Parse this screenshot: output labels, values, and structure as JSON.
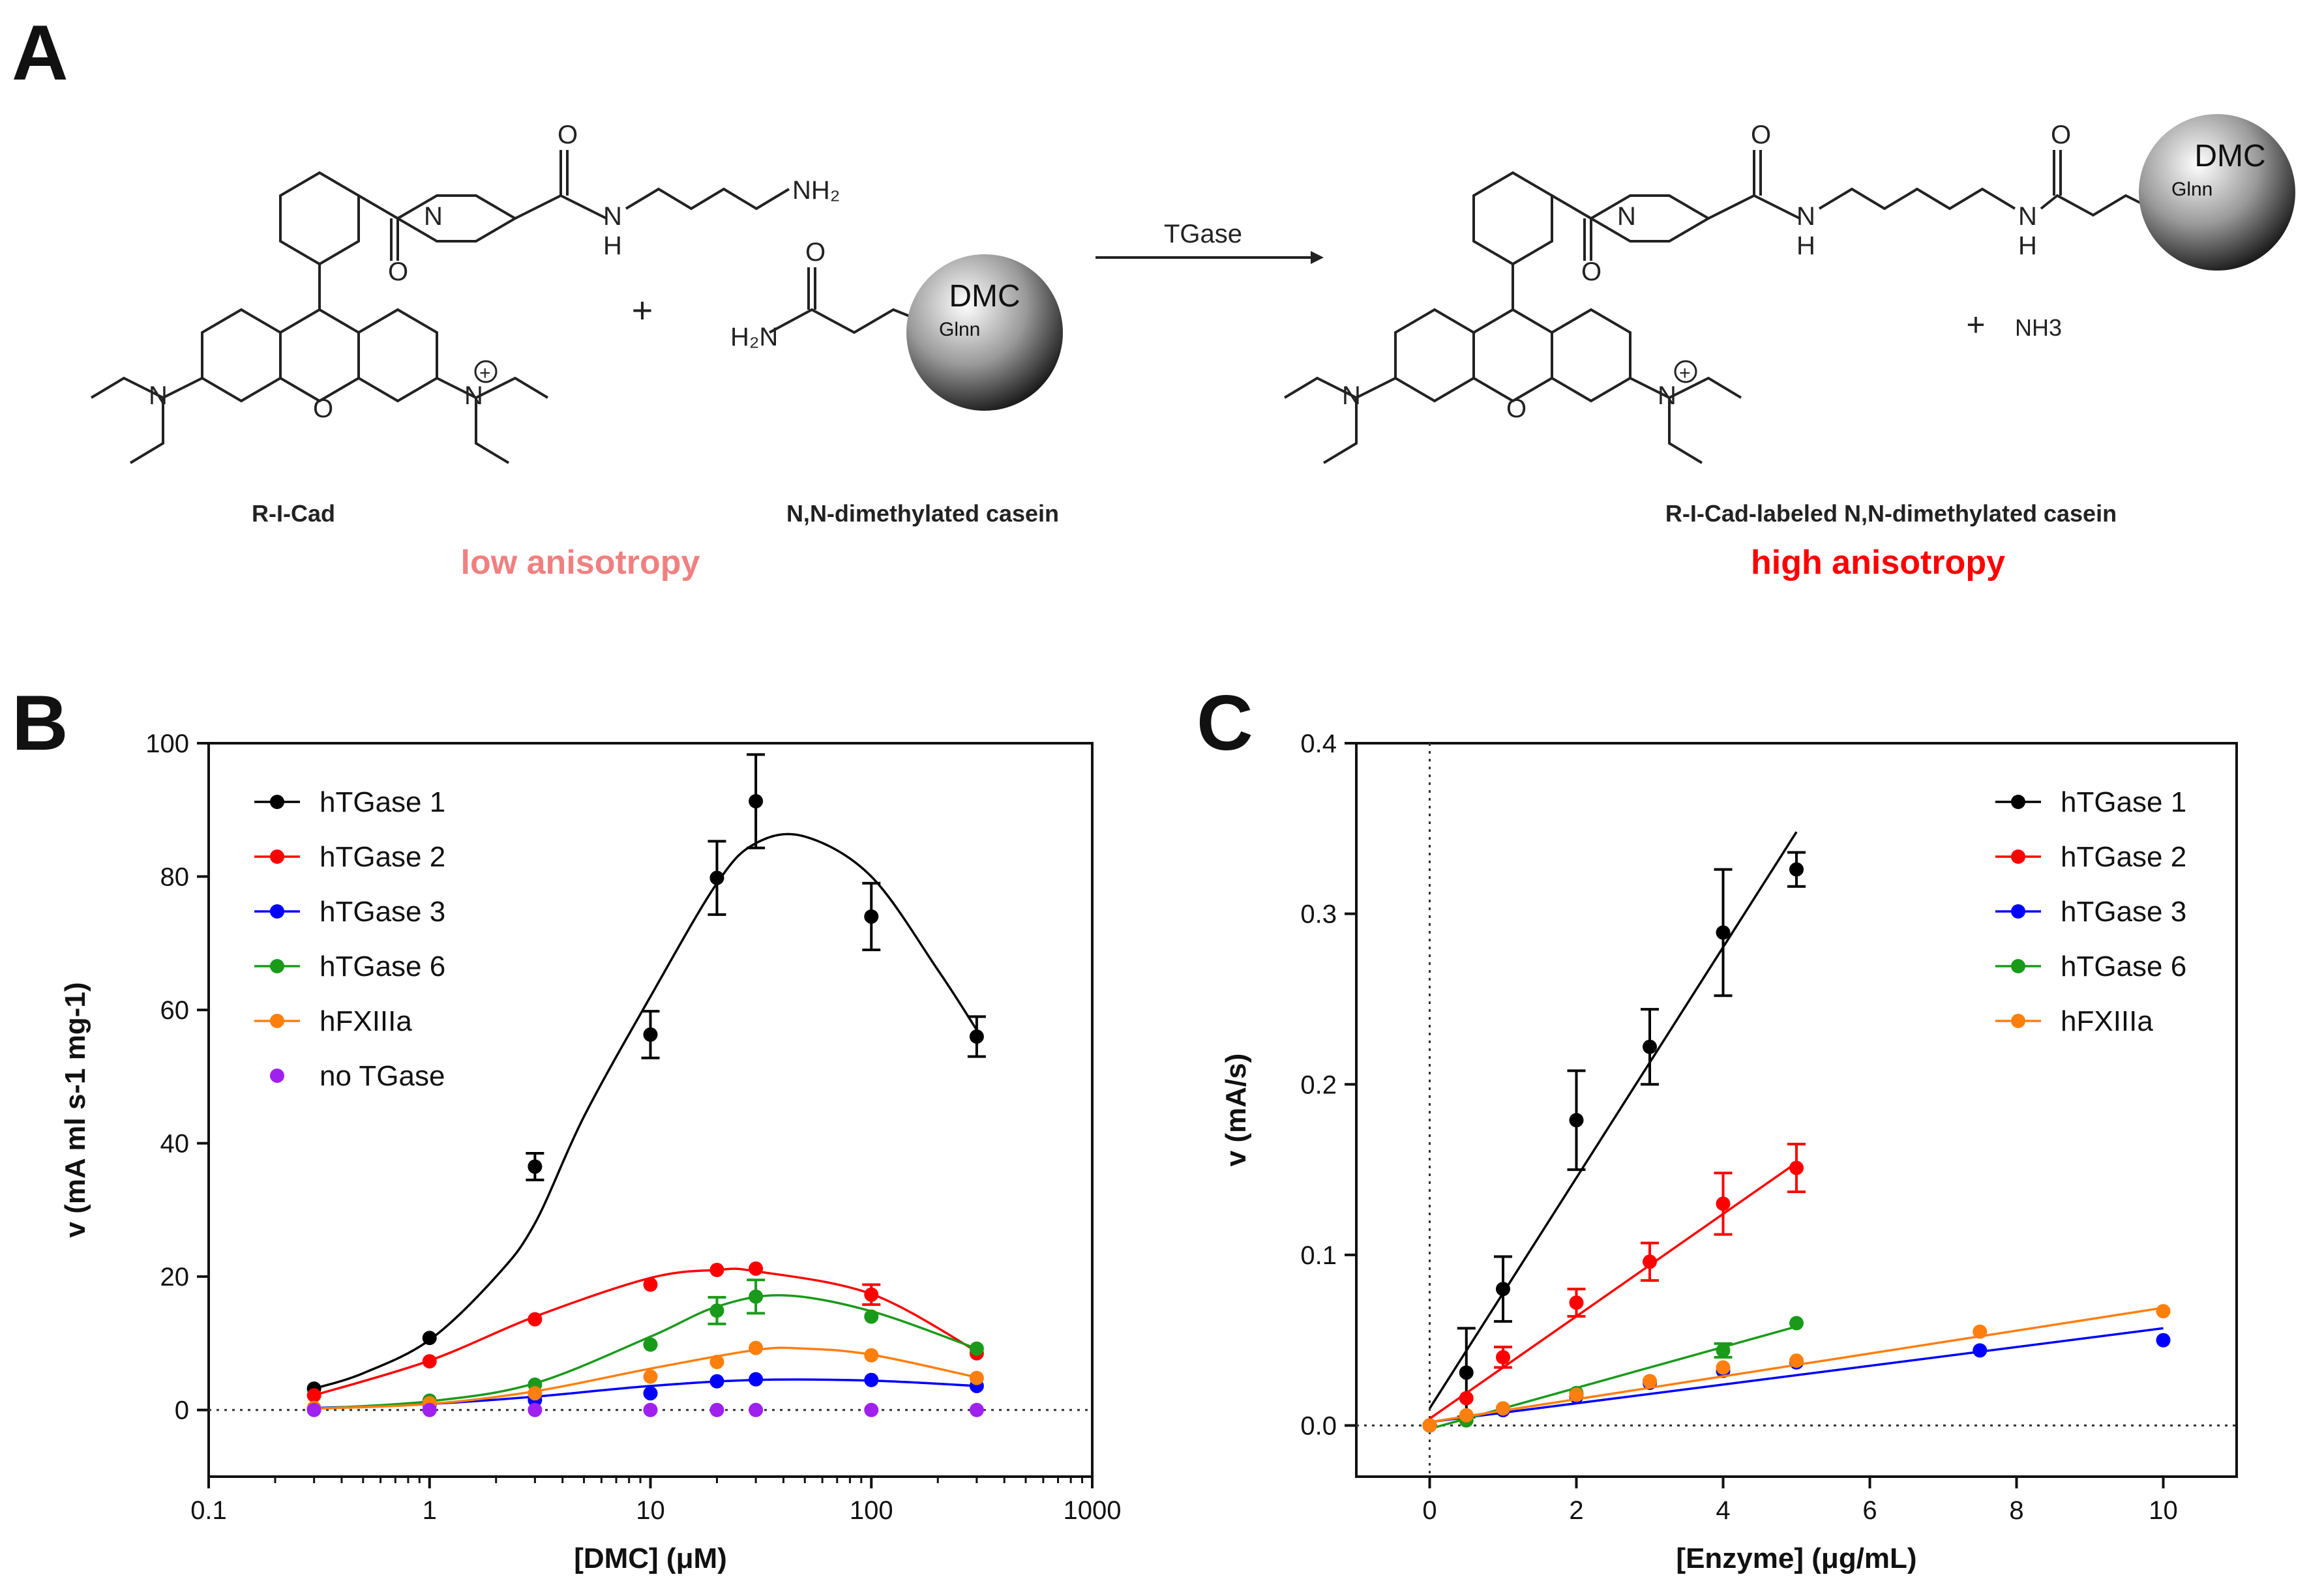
{
  "panels": {
    "a": "A",
    "b": "B",
    "c": "C"
  },
  "scheme": {
    "arrow_label": "TGase",
    "plus1": "+",
    "plus2": "+",
    "byproduct": "NH3",
    "reactant1_name": "R-I-Cad",
    "reactant2_name": "N,N-dimethylated casein",
    "product_name": "R-I-Cad-labeled N,N-dimethylated casein",
    "low_label": "low anisotropy",
    "high_label": "high anisotropy",
    "sphere_label": "DMC",
    "sphere_sub": "Glnn",
    "colors": {
      "low": "#f08080",
      "high": "#ff0000"
    }
  },
  "chart_data": [
    {
      "type": "scatter",
      "panel": "B",
      "xscale": "log",
      "xlabel": "[DMC] (μM)",
      "ylabel": "v (mA ml s-1 mg-1)",
      "xlim": [
        0.1,
        1000
      ],
      "ylim": [
        -10,
        100
      ],
      "xticks": [
        0.1,
        1,
        10,
        100,
        1000
      ],
      "xtick_labels": [
        "0.1",
        "1",
        "10",
        "100",
        "1000"
      ],
      "yticks": [
        0,
        20,
        40,
        60,
        80,
        100
      ],
      "ytick_labels": [
        "0",
        "20",
        "40",
        "60",
        "80",
        "100"
      ],
      "legend": "top-left",
      "x": [
        0.3,
        1,
        3,
        10,
        20,
        30,
        100,
        300
      ],
      "series": [
        {
          "name": "hTGase 1",
          "color": "#000000",
          "values": [
            3.2,
            10.8,
            36.5,
            56.3,
            79.8,
            91.3,
            74.0,
            56.0
          ],
          "err": [
            0,
            0,
            2,
            3.5,
            5.5,
            7,
            5,
            3
          ],
          "curve": [
            [
              0.3,
              3.2
            ],
            [
              0.5,
              5.5
            ],
            [
              1,
              10.5
            ],
            [
              2,
              20
            ],
            [
              3,
              28
            ],
            [
              5,
              44
            ],
            [
              10,
              62
            ],
            [
              20,
              79
            ],
            [
              30,
              85
            ],
            [
              50,
              86
            ],
            [
              100,
              80
            ],
            [
              200,
              66
            ],
            [
              300,
              57
            ]
          ]
        },
        {
          "name": "hTGase 2",
          "color": "#ff0000",
          "values": [
            2.2,
            7.3,
            13.6,
            18.8,
            21.0,
            21.2,
            17.3,
            8.5
          ],
          "err": [
            0,
            0,
            0,
            0,
            0,
            0,
            1.5,
            0
          ],
          "curve": [
            [
              0.3,
              2.2
            ],
            [
              1,
              7.4
            ],
            [
              3,
              14
            ],
            [
              10,
              19.8
            ],
            [
              20,
              21
            ],
            [
              30,
              20.8
            ],
            [
              100,
              17.4
            ],
            [
              300,
              8.8
            ]
          ]
        },
        {
          "name": "hTGase 3",
          "color": "#0000ff",
          "values": [
            0.2,
            0.8,
            1.5,
            2.5,
            4.3,
            4.6,
            4.5,
            3.6
          ],
          "err": [
            0,
            0,
            0,
            0,
            0,
            0,
            0,
            0
          ],
          "curve": [
            [
              0.3,
              0.3
            ],
            [
              1,
              0.9
            ],
            [
              3,
              2
            ],
            [
              10,
              3.6
            ],
            [
              30,
              4.5
            ],
            [
              100,
              4.4
            ],
            [
              300,
              3.6
            ]
          ]
        },
        {
          "name": "hTGase 6",
          "color": "#1a9a1a",
          "values": [
            0.3,
            1.4,
            3.8,
            9.8,
            14.9,
            17.0,
            14.0,
            9.2
          ],
          "err": [
            0,
            0,
            0,
            0,
            2,
            2.5,
            0,
            0
          ],
          "curve": [
            [
              0.3,
              0.2
            ],
            [
              1,
              1.3
            ],
            [
              3,
              4
            ],
            [
              10,
              11
            ],
            [
              20,
              15.5
            ],
            [
              40,
              17.2
            ],
            [
              100,
              14.8
            ],
            [
              300,
              9.2
            ]
          ]
        },
        {
          "name": "hFXIIIa",
          "color": "#ff7f0e",
          "values": [
            0.3,
            1.0,
            2.5,
            5.0,
            7.2,
            9.3,
            8.2,
            4.8
          ],
          "err": [
            0,
            0,
            0,
            0,
            0,
            0,
            0,
            0
          ],
          "curve": [
            [
              0.3,
              0.2
            ],
            [
              1,
              0.9
            ],
            [
              3,
              2.8
            ],
            [
              10,
              6.2
            ],
            [
              30,
              9
            ],
            [
              50,
              9.2
            ],
            [
              100,
              8.3
            ],
            [
              300,
              4.9
            ]
          ]
        },
        {
          "name": "no TGase",
          "color": "#a020f0",
          "values": [
            0,
            0,
            0,
            0,
            0,
            0,
            0,
            0
          ],
          "err": [
            0,
            0,
            0,
            0,
            0,
            0,
            0,
            0
          ],
          "curve": []
        }
      ]
    },
    {
      "type": "scatter",
      "panel": "C",
      "xscale": "linear",
      "xlabel": "[Enzyme] (μg/mL)",
      "ylabel": "v (mA/s)",
      "xlim": [
        -1,
        11
      ],
      "ylim": [
        -0.03,
        0.4
      ],
      "xticks": [
        0,
        2,
        4,
        6,
        8,
        10
      ],
      "xtick_labels": [
        "0",
        "2",
        "4",
        "6",
        "8",
        "10"
      ],
      "yticks": [
        0,
        0.1,
        0.2,
        0.3,
        0.4
      ],
      "ytick_labels": [
        "0.0",
        "0.1",
        "0.2",
        "0.3",
        "0.4"
      ],
      "legend": "top-right",
      "series": [
        {
          "name": "hTGase 1",
          "color": "#000000",
          "x": [
            0,
            0.5,
            1,
            2,
            3,
            4,
            5
          ],
          "values": [
            0,
            0.031,
            0.08,
            0.179,
            0.222,
            0.289,
            0.326
          ],
          "err": [
            0,
            0.026,
            0.019,
            0.029,
            0.022,
            0.037,
            0.01
          ],
          "line": [
            [
              0,
              0.01
            ],
            [
              5,
              0.348
            ]
          ]
        },
        {
          "name": "hTGase 2",
          "color": "#ff0000",
          "x": [
            0,
            0.5,
            1,
            2,
            3,
            4,
            5
          ],
          "values": [
            0,
            0.016,
            0.04,
            0.072,
            0.096,
            0.13,
            0.151
          ],
          "err": [
            0,
            0,
            0.006,
            0.008,
            0.011,
            0.018,
            0.014
          ],
          "line": [
            [
              0,
              0.004
            ],
            [
              5,
              0.154
            ]
          ]
        },
        {
          "name": "hTGase 3",
          "color": "#0000ff",
          "x": [
            0,
            0.5,
            1,
            2,
            3,
            4,
            5,
            7.5,
            10
          ],
          "values": [
            0,
            0.005,
            0.009,
            0.017,
            0.025,
            0.032,
            0.037,
            0.044,
            0.05
          ],
          "err": [
            0,
            0,
            0,
            0,
            0,
            0,
            0,
            0,
            0
          ],
          "line": [
            [
              0,
              0.002
            ],
            [
              10,
              0.057
            ]
          ]
        },
        {
          "name": "hTGase 6",
          "color": "#1a9a1a",
          "x": [
            0,
            0.5,
            1,
            2,
            3,
            4,
            5
          ],
          "values": [
            0,
            0.003,
            0.01,
            0.019,
            0.026,
            0.044,
            0.06
          ],
          "err": [
            0,
            0,
            0,
            0,
            0,
            0.004,
            0
          ],
          "line": [
            [
              0,
              -0.002
            ],
            [
              5,
              0.058
            ]
          ]
        },
        {
          "name": "hFXIIIa",
          "color": "#ff7f0e",
          "x": [
            0,
            0.5,
            1,
            2,
            3,
            4,
            5,
            7.5,
            10
          ],
          "values": [
            0,
            0.006,
            0.01,
            0.018,
            0.026,
            0.034,
            0.038,
            0.055,
            0.067
          ],
          "err": [
            0,
            0,
            0,
            0,
            0,
            0,
            0,
            0,
            0
          ],
          "line": [
            [
              0,
              0.002
            ],
            [
              10,
              0.069
            ]
          ]
        }
      ]
    }
  ]
}
